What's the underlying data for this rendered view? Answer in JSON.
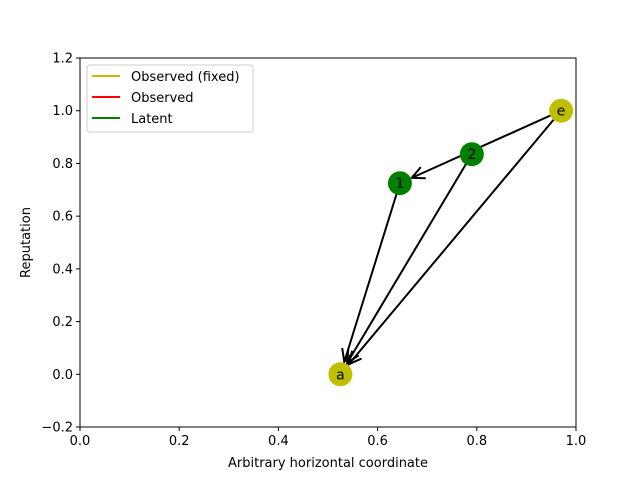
{
  "chart_data": {
    "type": "scatter",
    "title": "",
    "xlabel": "Arbitrary horizontal coordinate",
    "ylabel": "Reputation",
    "xlim": [
      0.0,
      1.0
    ],
    "ylim": [
      -0.2,
      1.2
    ],
    "xticks": [
      "0.0",
      "0.2",
      "0.4",
      "0.6",
      "0.8",
      "1.0"
    ],
    "xtick_values": [
      0.0,
      0.2,
      0.4,
      0.6,
      0.8,
      1.0
    ],
    "yticks": [
      "−0.2",
      "0.0",
      "0.2",
      "0.4",
      "0.6",
      "0.8",
      "1.0",
      "1.2"
    ],
    "ytick_values": [
      -0.2,
      0.0,
      0.2,
      0.4,
      0.6,
      0.8,
      1.0,
      1.2
    ],
    "grid": false,
    "legend_position": "top-left",
    "legend": [
      {
        "label": "Observed (fixed)",
        "color": "#bfbf00"
      },
      {
        "label": "Observed",
        "color": "#ff0000"
      },
      {
        "label": "Latent",
        "color": "#008000"
      }
    ],
    "nodes": [
      {
        "id": "a",
        "label": "a",
        "x": 0.525,
        "y": 0.0,
        "color": "#bfbf00"
      },
      {
        "id": "e",
        "label": "e",
        "x": 0.97,
        "y": 1.0,
        "color": "#bfbf00"
      },
      {
        "id": "2",
        "label": "2",
        "x": 0.79,
        "y": 0.835,
        "color": "#008000"
      },
      {
        "id": "1",
        "label": "1",
        "x": 0.645,
        "y": 0.725,
        "color": "#008000"
      }
    ],
    "edges": [
      {
        "from": "e",
        "to": "1"
      },
      {
        "from": "e",
        "to": "a"
      },
      {
        "from": "2",
        "to": "a"
      },
      {
        "from": "1",
        "to": "a"
      }
    ],
    "edge_color": "#000000"
  }
}
